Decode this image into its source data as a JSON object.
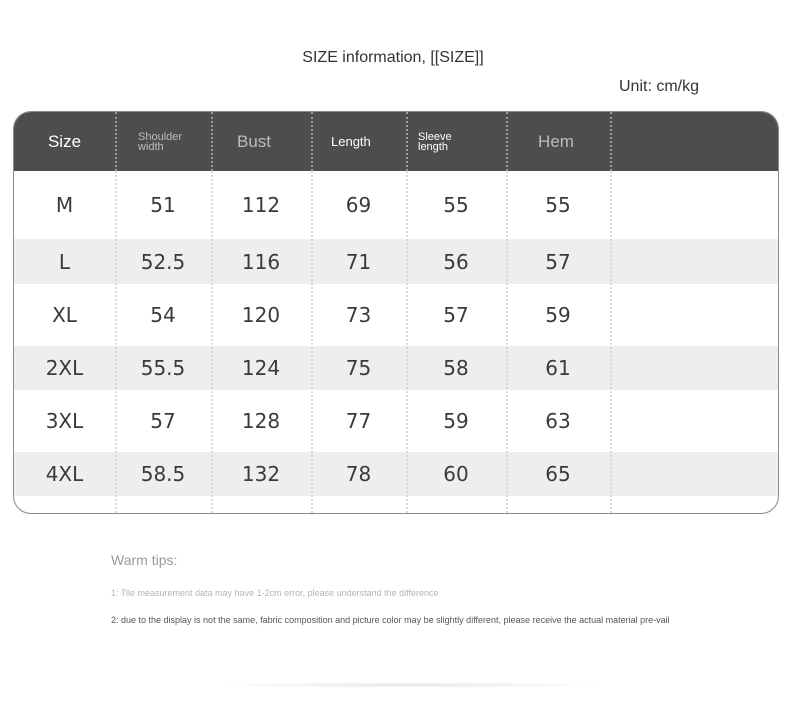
{
  "title": "SIZE information, [[SIZE]]",
  "unit": "Unit: cm/kg",
  "table": {
    "headers": [
      {
        "label": "Size",
        "lines": [
          "Size"
        ]
      },
      {
        "label": "Shoulder width",
        "lines": [
          "Shoulder",
          "width"
        ]
      },
      {
        "label": "Bust",
        "lines": [
          "Bust"
        ]
      },
      {
        "label": "Length",
        "lines": [
          "Length"
        ]
      },
      {
        "label": "Sleeve length",
        "lines": [
          "Sleeve",
          "length"
        ]
      },
      {
        "label": "Hem",
        "lines": [
          "Hem"
        ]
      },
      {
        "label": "",
        "lines": []
      }
    ],
    "rows": [
      {
        "cells": [
          "M",
          "51",
          "112",
          "69",
          "55",
          "55"
        ],
        "ghost": [
          "",
          ""
        ]
      },
      {
        "cells": [
          "L",
          "52.5",
          "116",
          "71",
          "56",
          "57"
        ],
        "ghost": [
          "",
          ""
        ]
      },
      {
        "cells": [
          "XL",
          "54",
          "120",
          "73",
          "57",
          "59"
        ],
        "ghost": [
          "",
          ""
        ]
      },
      {
        "cells": [
          "2XL",
          "55.5",
          "124",
          "75",
          "58",
          "61"
        ],
        "ghost": [
          "",
          ""
        ]
      },
      {
        "cells": [
          "3XL",
          "57",
          "128",
          "77",
          "59",
          "63"
        ],
        "ghost": [
          "",
          ""
        ]
      },
      {
        "cells": [
          "4XL",
          "58.5",
          "132",
          "78",
          "60",
          "65"
        ],
        "ghost": [
          "",
          ""
        ]
      }
    ]
  },
  "tips": {
    "title": "Warm tips:",
    "tip1": "1: Tile measurement data may have 1-2cm error, please understand the difference",
    "tip2": "2: due to the display is not the same, fabric composition and picture color may be slightly different, please receive the actual material pre-vail"
  }
}
